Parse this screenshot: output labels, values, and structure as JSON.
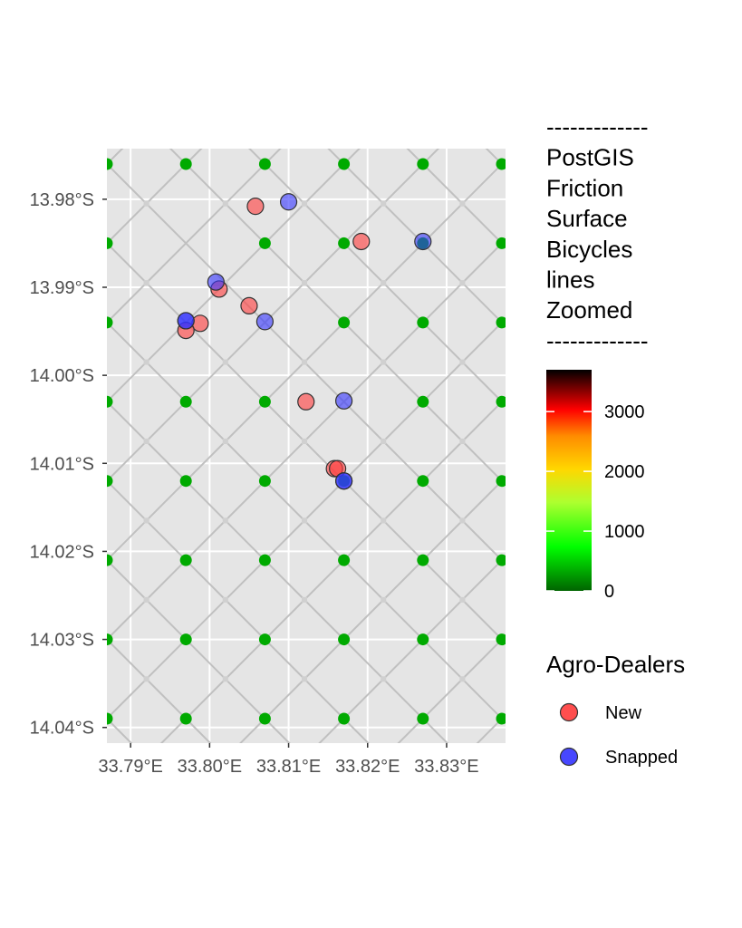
{
  "chart_data": {
    "type": "scatter",
    "title": "",
    "xlabel": "",
    "ylabel": "",
    "x_ticks": [
      "33.79°E",
      "33.80°E",
      "33.81°E",
      "33.82°E",
      "33.83°E"
    ],
    "x_tick_values": [
      33.79,
      33.8,
      33.81,
      33.82,
      33.83
    ],
    "y_ticks": [
      "13.98°S",
      "13.99°S",
      "14.00°S",
      "14.01°S",
      "14.02°S",
      "14.03°S",
      "14.04°S"
    ],
    "y_tick_values": [
      -13.98,
      -13.99,
      -14.0,
      -14.01,
      -14.02,
      -14.03,
      -14.04
    ],
    "xlim": [
      33.787,
      33.837
    ],
    "ylim": [
      -14.041,
      -13.974
    ],
    "grid": true,
    "background": "#e5e5e5",
    "network_nodes": {
      "color": "#00aa00",
      "lon": [
        33.787,
        33.797,
        33.807,
        33.817,
        33.827,
        33.837
      ],
      "lat": [
        -13.976,
        -13.985,
        -13.994,
        -14.003,
        -14.012,
        -14.021,
        -14.03,
        -14.039
      ],
      "hidden": [
        [
          1,
          1
        ],
        [
          1,
          2
        ],
        [
          2,
          2
        ],
        [
          3,
          3
        ]
      ]
    },
    "friction_lines": {
      "color": "#c0c0c0",
      "pattern": "diagonal lattice"
    },
    "series": [
      {
        "name": "New",
        "color": "#ff3b3b",
        "points": [
          {
            "lon": 33.8058,
            "lat": -13.9808
          },
          {
            "lon": 33.8192,
            "lat": -13.9848
          },
          {
            "lon": 33.8012,
            "lat": -13.9902
          },
          {
            "lon": 33.805,
            "lat": -13.9921
          },
          {
            "lon": 33.7988,
            "lat": -13.9941
          },
          {
            "lon": 33.797,
            "lat": -13.9949
          },
          {
            "lon": 33.8122,
            "lat": -14.003
          },
          {
            "lon": 33.8158,
            "lat": -14.0106
          },
          {
            "lon": 33.8162,
            "lat": -14.0106
          }
        ]
      },
      {
        "name": "Snapped",
        "color": "#3333ff",
        "points": [
          {
            "lon": 33.81,
            "lat": -13.9803
          },
          {
            "lon": 33.827,
            "lat": -13.9848
          },
          {
            "lon": 33.8008,
            "lat": -13.9894
          },
          {
            "lon": 33.797,
            "lat": -13.9938
          },
          {
            "lon": 33.797,
            "lat": -13.9938
          },
          {
            "lon": 33.807,
            "lat": -13.9939
          },
          {
            "lon": 33.817,
            "lat": -14.0029
          },
          {
            "lon": 33.817,
            "lat": -14.012
          },
          {
            "lon": 33.817,
            "lat": -14.012
          }
        ]
      }
    ],
    "colorbar": {
      "title_lines": [
        "-------------",
        "PostGIS",
        "Friction",
        "Surface",
        "Bicycles",
        "lines",
        "Zoomed",
        "-------------"
      ],
      "ticks": [
        0,
        1000,
        2000,
        3000
      ],
      "tick_labels": [
        "0",
        "1000",
        "2000",
        "3000"
      ],
      "range": [
        0,
        3700
      ],
      "colors": [
        "#006400",
        "#00ff00",
        "#adff2f",
        "#ffd700",
        "#ff8c00",
        "#ff0000",
        "#000000"
      ]
    },
    "legend": {
      "title": "Agro-Dealers",
      "position": "right",
      "items": [
        {
          "label": "New",
          "color": "#ff3b3b"
        },
        {
          "label": "Snapped",
          "color": "#3333ff"
        }
      ]
    }
  }
}
